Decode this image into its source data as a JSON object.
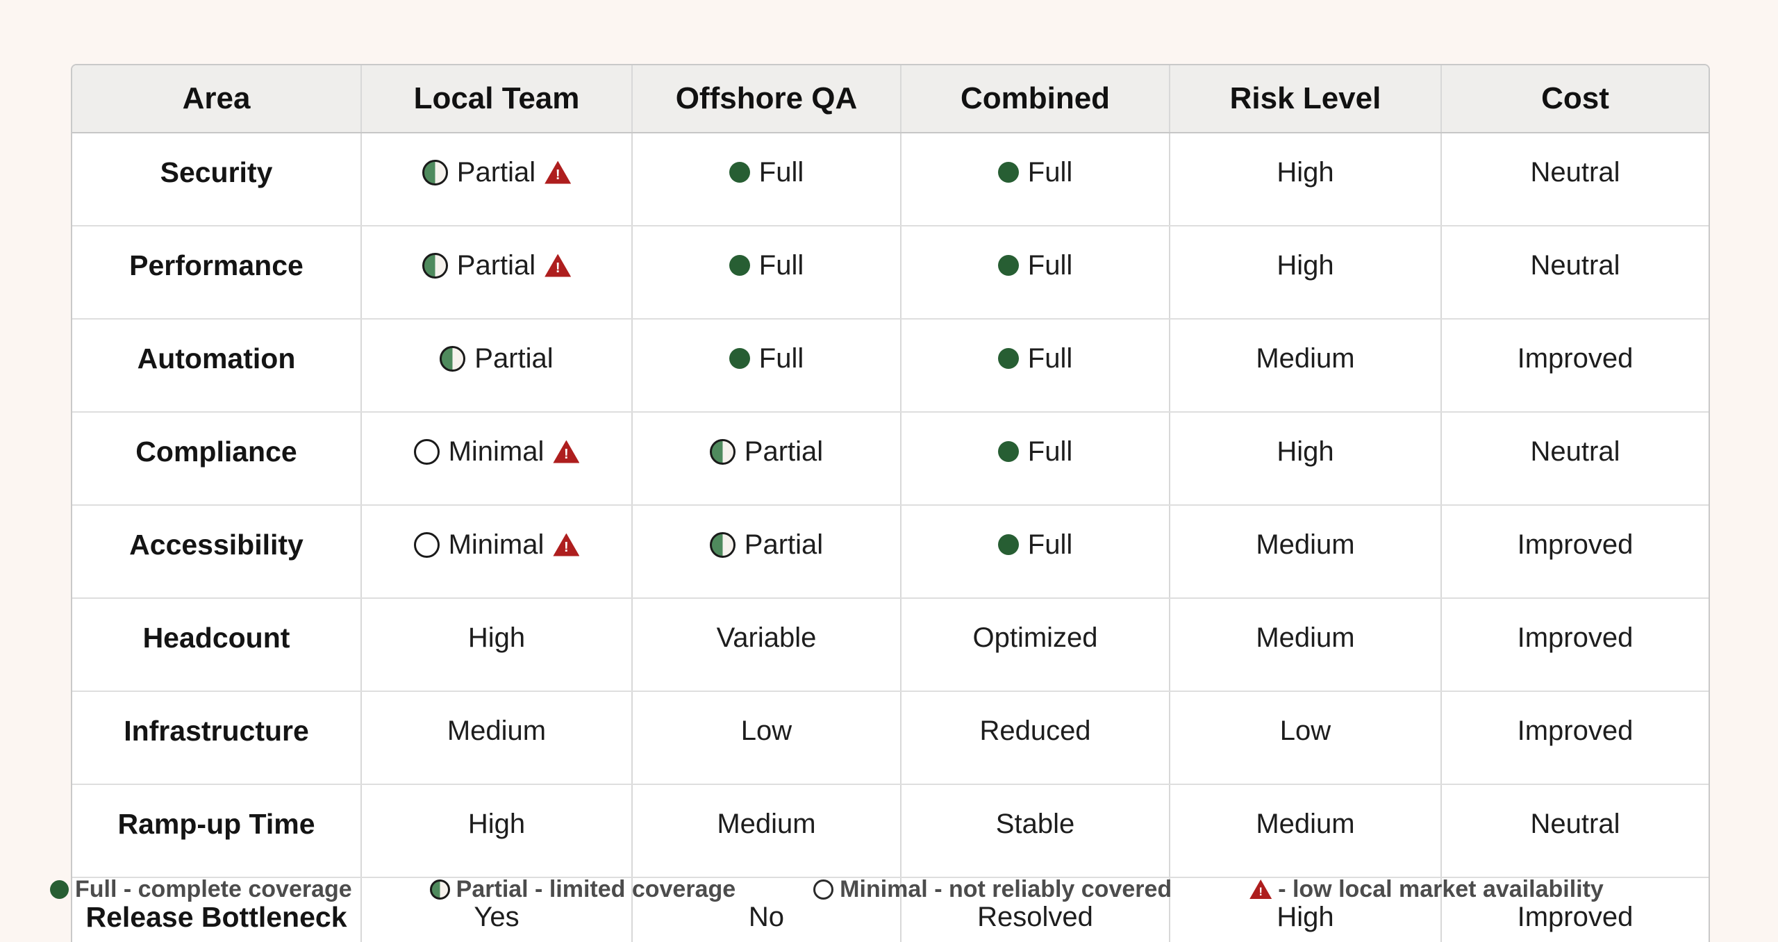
{
  "colors": {
    "page_bg": "#fcf6f2",
    "table_bg": "#ffffff",
    "header_bg": "#efeeec",
    "outer_border": "#c9c9c9",
    "grid_line": "#d8d8d8",
    "text": "#1d1d1d",
    "legend_text": "#4c4c4c",
    "green_full": "#275e33",
    "green_partial": "#4f8a5d",
    "warning_red": "#ae1e1e"
  },
  "icons": {
    "warning_exclamation": "!"
  },
  "table": {
    "columns": [
      "Area",
      "Local Team",
      "Offshore QA",
      "Combined",
      "Risk Level",
      "Cost"
    ],
    "rows": [
      {
        "area": "Security",
        "local_team": {
          "icon": "partial",
          "label": "Partial",
          "warning": true
        },
        "offshore_qa": {
          "icon": "full",
          "label": "Full"
        },
        "combined": {
          "icon": "full",
          "label": "Full"
        },
        "risk_level": "High",
        "cost": "Neutral"
      },
      {
        "area": "Performance",
        "local_team": {
          "icon": "partial",
          "label": "Partial",
          "warning": true
        },
        "offshore_qa": {
          "icon": "full",
          "label": "Full"
        },
        "combined": {
          "icon": "full",
          "label": "Full"
        },
        "risk_level": "High",
        "cost": "Neutral"
      },
      {
        "area": "Automation",
        "local_team": {
          "icon": "partial",
          "label": "Partial",
          "warning": false
        },
        "offshore_qa": {
          "icon": "full",
          "label": "Full"
        },
        "combined": {
          "icon": "full",
          "label": "Full"
        },
        "risk_level": "Medium",
        "cost": "Improved"
      },
      {
        "area": "Compliance",
        "local_team": {
          "icon": "minimal",
          "label": "Minimal",
          "warning": true
        },
        "offshore_qa": {
          "icon": "partial",
          "label": "Partial"
        },
        "combined": {
          "icon": "full",
          "label": "Full"
        },
        "risk_level": "High",
        "cost": "Neutral"
      },
      {
        "area": "Accessibility",
        "local_team": {
          "icon": "minimal",
          "label": "Minimal",
          "warning": true
        },
        "offshore_qa": {
          "icon": "partial",
          "label": "Partial"
        },
        "combined": {
          "icon": "full",
          "label": "Full"
        },
        "risk_level": "Medium",
        "cost": "Improved"
      },
      {
        "area": "Headcount",
        "local_team": {
          "label": "High"
        },
        "offshore_qa": {
          "label": "Variable"
        },
        "combined": {
          "label": "Optimized"
        },
        "risk_level": "Medium",
        "cost": "Improved"
      },
      {
        "area": "Infrastructure",
        "local_team": {
          "label": "Medium"
        },
        "offshore_qa": {
          "label": "Low"
        },
        "combined": {
          "label": "Reduced"
        },
        "risk_level": "Low",
        "cost": "Improved"
      },
      {
        "area": "Ramp-up Time",
        "local_team": {
          "label": "High"
        },
        "offshore_qa": {
          "label": "Medium"
        },
        "combined": {
          "label": "Stable"
        },
        "risk_level": "Medium",
        "cost": "Neutral"
      },
      {
        "area": "Release Bottleneck",
        "local_team": {
          "label": "Yes"
        },
        "offshore_qa": {
          "label": "No"
        },
        "combined": {
          "label": "Resolved"
        },
        "risk_level": "High",
        "cost": "Improved"
      }
    ]
  },
  "legend": [
    {
      "icon": "full",
      "label": "Full - complete coverage"
    },
    {
      "icon": "partial",
      "label": "Partial - limited coverage"
    },
    {
      "icon": "minimal",
      "label": "Minimal - not reliably covered"
    },
    {
      "icon": "warning",
      "label": "- low local market availability"
    }
  ],
  "chart_data": {
    "type": "table",
    "columns": [
      "Area",
      "Local Team",
      "Offshore QA",
      "Combined",
      "Risk Level",
      "Cost"
    ],
    "rows": [
      [
        "Security",
        "Partial ⚠",
        "Full",
        "Full",
        "High",
        "Neutral"
      ],
      [
        "Performance",
        "Partial ⚠",
        "Full",
        "Full",
        "High",
        "Neutral"
      ],
      [
        "Automation",
        "Partial",
        "Full",
        "Full",
        "Medium",
        "Improved"
      ],
      [
        "Compliance",
        "Minimal ⚠",
        "Partial",
        "Full",
        "High",
        "Neutral"
      ],
      [
        "Accessibility",
        "Minimal ⚠",
        "Partial",
        "Full",
        "Medium",
        "Improved"
      ],
      [
        "Headcount",
        "High",
        "Variable",
        "Optimized",
        "Medium",
        "Improved"
      ],
      [
        "Infrastructure",
        "Medium",
        "Low",
        "Reduced",
        "Low",
        "Improved"
      ],
      [
        "Ramp-up Time",
        "High",
        "Medium",
        "Stable",
        "Medium",
        "Neutral"
      ],
      [
        "Release Bottleneck",
        "Yes",
        "No",
        "Resolved",
        "High",
        "Improved"
      ]
    ],
    "legend": [
      "Full - complete coverage",
      "Partial - limited coverage",
      "Minimal - not reliably covered",
      "⚠ - low local market availability"
    ],
    "icon_semantics": {
      "full": "solid dark-green circle",
      "partial": "half-filled green/white circle with black outline",
      "minimal": "empty circle with black outline",
      "warning": "red triangle with white exclamation mark"
    }
  }
}
